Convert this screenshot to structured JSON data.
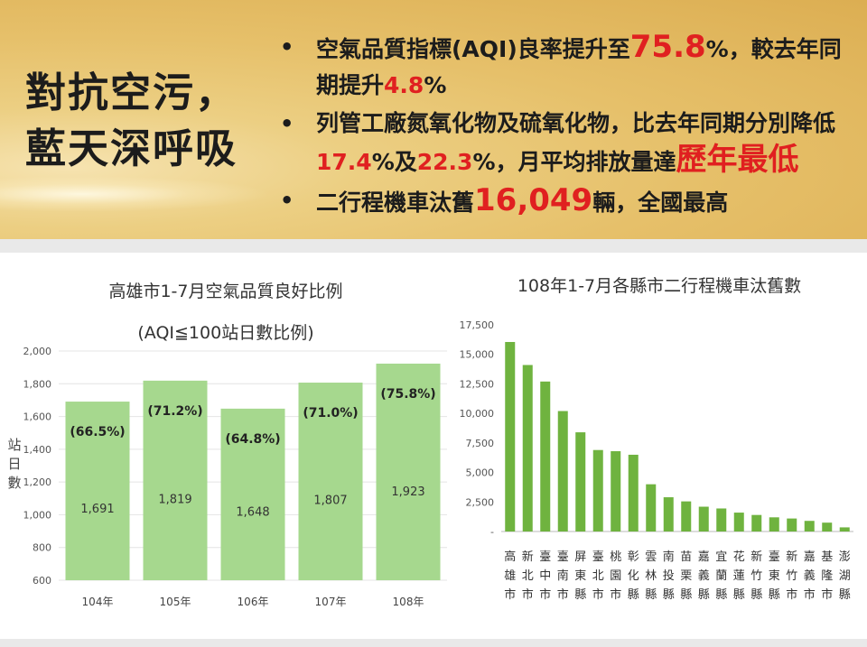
{
  "headline": "對抗空污，\n藍天深呼吸",
  "bullets": [
    {
      "parts": [
        [
          "空氣品質指標(AQI)良率提升至",
          "n"
        ],
        [
          "75.8",
          "rb"
        ],
        [
          "%，較去年同期提升",
          "n"
        ],
        [
          "4.8",
          "r"
        ],
        [
          "%",
          "n"
        ]
      ]
    },
    {
      "parts": [
        [
          "列管工廠氮氧化物及硫氧化物，比去年同期分別降低",
          "n"
        ],
        [
          "17.4",
          "r"
        ],
        [
          "%及",
          "n"
        ],
        [
          "22.3",
          "r"
        ],
        [
          "%，月平均排放量達",
          "n"
        ],
        [
          "歷年最低",
          "rb"
        ]
      ]
    },
    {
      "parts": [
        [
          "二行程機車汰舊",
          "n"
        ],
        [
          "16,049",
          "rb"
        ],
        [
          "輛，全國最高",
          "n"
        ]
      ]
    }
  ],
  "colors": {
    "bar_left": "#a6d88e",
    "bar_right": "#6fb33f",
    "accent_red": "#e02020"
  },
  "chart_data": [
    {
      "type": "bar",
      "title": "高雄市1-7月空氣品質良好比例",
      "subtitle": "(AQI≦100站日數比例)",
      "ylabel": "站日數",
      "ylim": [
        600,
        2000
      ],
      "yticks": [
        "600",
        "800",
        "1,000",
        "1,200",
        "1,400",
        "1,600",
        "1,800",
        "2,000"
      ],
      "categories": [
        "104年",
        "105年",
        "106年",
        "107年",
        "108年"
      ],
      "values": [
        1691,
        1819,
        1648,
        1807,
        1923
      ],
      "value_labels": [
        "1,691",
        "1,819",
        "1,648",
        "1,807",
        "1,923"
      ],
      "percent_labels": [
        "(66.5%)",
        "(71.2%)",
        "(64.8%)",
        "(71.0%)",
        "(75.8%)"
      ]
    },
    {
      "type": "bar",
      "title": "108年1-7月各縣市二行程機車汰舊數",
      "ylim": [
        0,
        17500
      ],
      "yticks": [
        "-",
        "2,500",
        "5,000",
        "7,500",
        "10,000",
        "12,500",
        "15,000",
        "17,500"
      ],
      "categories": [
        "高雄市",
        "新北市",
        "臺中市",
        "臺南市",
        "屏東縣",
        "臺北市",
        "桃園市",
        "彰化縣",
        "雲林縣",
        "南投縣",
        "苗栗縣",
        "嘉義縣",
        "宜蘭縣",
        "花蓮縣",
        "新竹縣",
        "臺東縣",
        "新竹市",
        "嘉義市",
        "基隆市",
        "澎湖縣"
      ],
      "values": [
        16049,
        14100,
        12700,
        10200,
        8400,
        6900,
        6800,
        6500,
        4000,
        2900,
        2550,
        2100,
        1950,
        1600,
        1400,
        1200,
        1100,
        900,
        750,
        350
      ]
    }
  ]
}
